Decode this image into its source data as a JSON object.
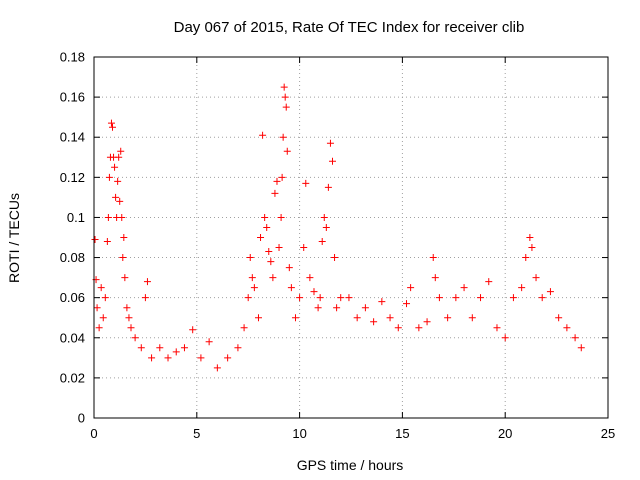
{
  "chart_data": {
    "type": "scatter",
    "title": "Day 067 of 2015, Rate Of TEC Index for receiver clib",
    "xlabel": "GPS time / hours",
    "ylabel": "ROTI / TECUs",
    "xlim": [
      0,
      25
    ],
    "ylim": [
      0,
      0.18
    ],
    "xticks": [
      0,
      5,
      10,
      15,
      20,
      25
    ],
    "xtick_labels": [
      "0",
      "5",
      "10",
      "15",
      "20",
      "25"
    ],
    "yticks": [
      0,
      0.02,
      0.04,
      0.06,
      0.08,
      0.1,
      0.12,
      0.14,
      0.16,
      0.18
    ],
    "ytick_labels": [
      "0",
      "0.02",
      "0.04",
      "0.06",
      "0.08",
      "0.1",
      "0.12",
      "0.14",
      "0.16",
      "0.18"
    ],
    "grid": true,
    "marker": "plus",
    "marker_color": "#ff0000",
    "series": [
      {
        "points": [
          [
            0.05,
            0.089
          ],
          [
            0.1,
            0.069
          ],
          [
            0.15,
            0.055
          ],
          [
            0.25,
            0.045
          ],
          [
            0.35,
            0.065
          ],
          [
            0.45,
            0.05
          ],
          [
            0.55,
            0.06
          ],
          [
            0.65,
            0.088
          ],
          [
            0.7,
            0.1
          ],
          [
            0.75,
            0.12
          ],
          [
            0.8,
            0.13
          ],
          [
            0.85,
            0.147
          ],
          [
            0.9,
            0.145
          ],
          [
            0.95,
            0.13
          ],
          [
            1.0,
            0.125
          ],
          [
            1.05,
            0.11
          ],
          [
            1.1,
            0.1
          ],
          [
            1.15,
            0.118
          ],
          [
            1.2,
            0.13
          ],
          [
            1.25,
            0.108
          ],
          [
            1.3,
            0.133
          ],
          [
            1.35,
            0.1
          ],
          [
            1.4,
            0.08
          ],
          [
            1.45,
            0.09
          ],
          [
            1.5,
            0.07
          ],
          [
            1.6,
            0.055
          ],
          [
            1.7,
            0.05
          ],
          [
            1.8,
            0.045
          ],
          [
            2.0,
            0.04
          ],
          [
            2.3,
            0.035
          ],
          [
            2.5,
            0.06
          ],
          [
            2.6,
            0.068
          ],
          [
            2.8,
            0.03
          ],
          [
            3.2,
            0.035
          ],
          [
            3.6,
            0.03
          ],
          [
            4.0,
            0.033
          ],
          [
            4.4,
            0.035
          ],
          [
            4.8,
            0.044
          ],
          [
            5.2,
            0.03
          ],
          [
            5.6,
            0.038
          ],
          [
            6.0,
            0.025
          ],
          [
            6.5,
            0.03
          ],
          [
            7.0,
            0.035
          ],
          [
            7.3,
            0.045
          ],
          [
            7.5,
            0.06
          ],
          [
            7.6,
            0.08
          ],
          [
            7.7,
            0.07
          ],
          [
            7.8,
            0.065
          ],
          [
            8.0,
            0.05
          ],
          [
            8.1,
            0.09
          ],
          [
            8.2,
            0.141
          ],
          [
            8.3,
            0.1
          ],
          [
            8.4,
            0.095
          ],
          [
            8.5,
            0.083
          ],
          [
            8.6,
            0.078
          ],
          [
            8.7,
            0.07
          ],
          [
            8.8,
            0.112
          ],
          [
            8.9,
            0.118
          ],
          [
            9.0,
            0.085
          ],
          [
            9.1,
            0.1
          ],
          [
            9.15,
            0.12
          ],
          [
            9.2,
            0.14
          ],
          [
            9.25,
            0.165
          ],
          [
            9.3,
            0.16
          ],
          [
            9.35,
            0.155
          ],
          [
            9.4,
            0.133
          ],
          [
            9.5,
            0.075
          ],
          [
            9.6,
            0.065
          ],
          [
            9.8,
            0.05
          ],
          [
            10.0,
            0.06
          ],
          [
            10.2,
            0.085
          ],
          [
            10.3,
            0.117
          ],
          [
            10.5,
            0.07
          ],
          [
            10.7,
            0.063
          ],
          [
            10.9,
            0.055
          ],
          [
            11.0,
            0.06
          ],
          [
            11.1,
            0.088
          ],
          [
            11.2,
            0.1
          ],
          [
            11.3,
            0.095
          ],
          [
            11.4,
            0.115
          ],
          [
            11.5,
            0.137
          ],
          [
            11.6,
            0.128
          ],
          [
            11.7,
            0.08
          ],
          [
            11.8,
            0.055
          ],
          [
            12.0,
            0.06
          ],
          [
            12.4,
            0.06
          ],
          [
            12.8,
            0.05
          ],
          [
            13.2,
            0.055
          ],
          [
            13.6,
            0.048
          ],
          [
            14.0,
            0.058
          ],
          [
            14.4,
            0.05
          ],
          [
            14.8,
            0.045
          ],
          [
            15.2,
            0.057
          ],
          [
            15.4,
            0.065
          ],
          [
            15.8,
            0.045
          ],
          [
            16.2,
            0.048
          ],
          [
            16.5,
            0.08
          ],
          [
            16.6,
            0.07
          ],
          [
            16.8,
            0.06
          ],
          [
            17.2,
            0.05
          ],
          [
            17.6,
            0.06
          ],
          [
            18.0,
            0.065
          ],
          [
            18.4,
            0.05
          ],
          [
            18.8,
            0.06
          ],
          [
            19.2,
            0.068
          ],
          [
            19.6,
            0.045
          ],
          [
            20.0,
            0.04
          ],
          [
            20.4,
            0.06
          ],
          [
            20.8,
            0.065
          ],
          [
            21.0,
            0.08
          ],
          [
            21.2,
            0.09
          ],
          [
            21.3,
            0.085
          ],
          [
            21.5,
            0.07
          ],
          [
            21.8,
            0.06
          ],
          [
            22.2,
            0.063
          ],
          [
            22.6,
            0.05
          ],
          [
            23.0,
            0.045
          ],
          [
            23.4,
            0.04
          ],
          [
            23.7,
            0.035
          ]
        ]
      }
    ]
  }
}
